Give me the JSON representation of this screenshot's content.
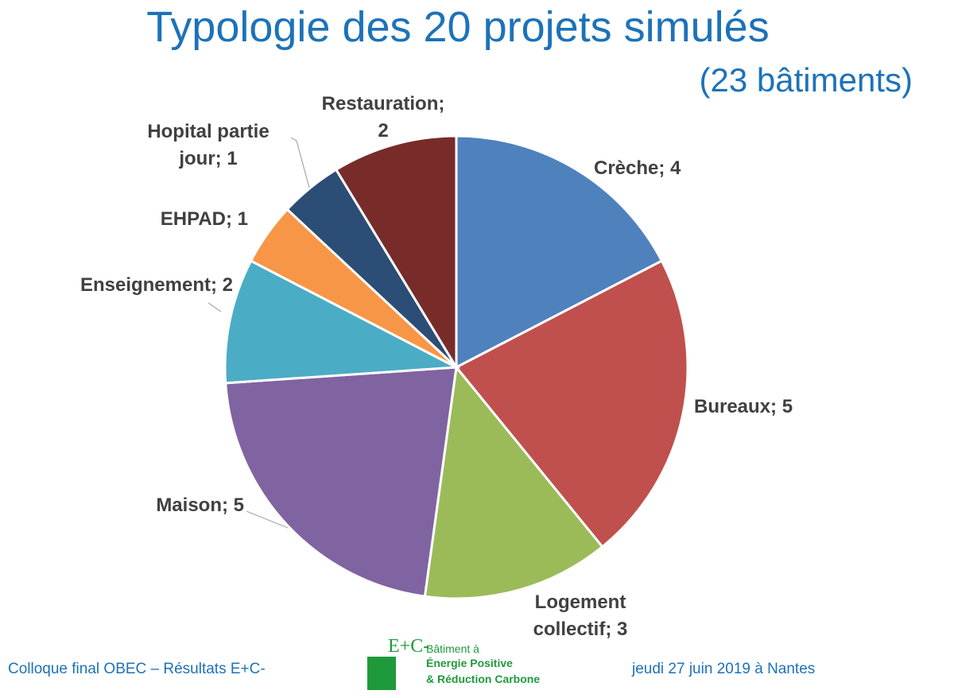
{
  "header": {
    "title": "Typologie des 20 projets simulés",
    "subtitle": "(23 bâtiments)"
  },
  "chart_data": {
    "type": "pie",
    "categories": [
      "Crèche",
      "Bureaux",
      "Logement collectif",
      "Maison",
      "Enseignement",
      "EHPAD",
      "Hopital partie jour",
      "Restauration"
    ],
    "values": [
      4,
      5,
      3,
      5,
      2,
      1,
      1,
      2
    ],
    "labels": [
      "Crèche; 4",
      "Bureaux; 5",
      "Logement collectif; 3",
      "Maison; 5",
      "Enseignement; 2",
      "EHPAD; 1",
      "Hopital partie jour; 1",
      "Restauration; 2"
    ],
    "colors": [
      "#4f81bd",
      "#c0504d",
      "#9bbb59",
      "#8064a2",
      "#4bacc6",
      "#f79646",
      "#2c4d75",
      "#772c2a"
    ],
    "start_angle": "12 o'clock",
    "direction": "clockwise"
  },
  "footer": {
    "left": "Colloque final OBEC – Résultats E+C-",
    "right": "jeudi 27 juin 2019 à Nantes",
    "logo": {
      "mark": "E+C-",
      "line1": "Bâtiment à",
      "line2": "Énergie Positive",
      "line3": "& Réduction Carbone"
    }
  }
}
